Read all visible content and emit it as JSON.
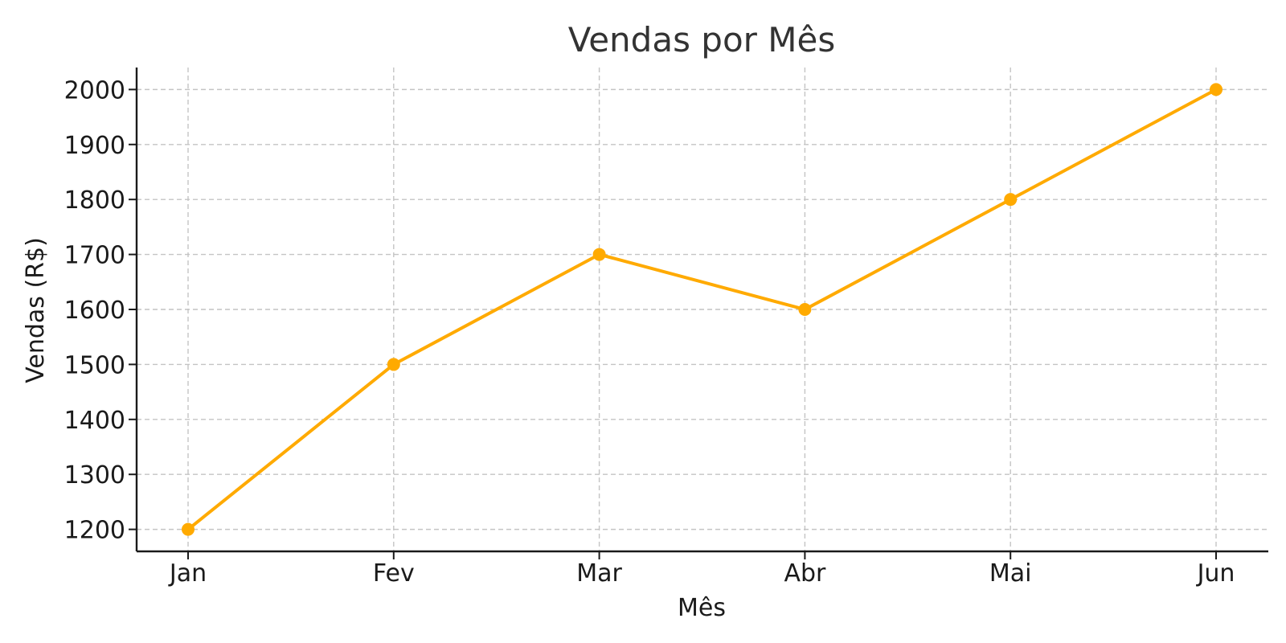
{
  "chart_data": {
    "type": "line",
    "title": "Vendas por Mês",
    "xlabel": "Mês",
    "ylabel": "Vendas (R$)",
    "categories": [
      "Jan",
      "Fev",
      "Mar",
      "Abr",
      "Mai",
      "Jun"
    ],
    "series": [
      {
        "values": [
          1200,
          1500,
          1700,
          1600,
          1800,
          2000
        ],
        "color": "#FFAA00",
        "marker": "circle"
      }
    ],
    "ylim": [
      1160,
      2040
    ],
    "yticks": [
      1200,
      1300,
      1400,
      1500,
      1600,
      1700,
      1800,
      1900,
      2000
    ],
    "grid": true,
    "legend": "none"
  }
}
